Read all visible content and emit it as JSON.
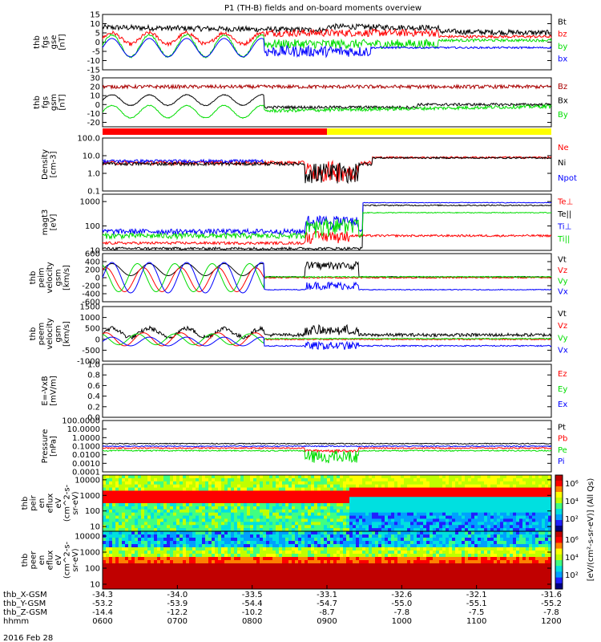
{
  "title": "P1 (TH-B) fields and on-board moments overview",
  "date_label": "2016 Feb 28",
  "colors": {
    "black": "#000000",
    "red": "#ff0000",
    "green": "#00dd00",
    "blue": "#0000ff",
    "darkred": "#aa0000",
    "yellow": "#ffff00"
  },
  "chart_data": [
    {
      "type": "line",
      "id": "fgs_gse",
      "ylabel": [
        "thb",
        "fgs",
        "gse",
        "[nT]"
      ],
      "ylim": [
        -15,
        15
      ],
      "yticks": [
        "15",
        "10",
        "5",
        "0",
        "-5",
        "-10",
        "-15"
      ],
      "yvals": [
        15,
        10,
        5,
        0,
        -5,
        -10,
        -15
      ],
      "series": [
        {
          "name": "Bt",
          "color": "#000000"
        },
        {
          "name": "bz",
          "color": "#ff0000"
        },
        {
          "name": "by",
          "color": "#00dd00"
        },
        {
          "name": "bx",
          "color": "#0000ff"
        }
      ]
    },
    {
      "type": "line",
      "id": "fgs_gsm",
      "ylabel": [
        "thb",
        "fgs",
        "gsm",
        "[nT]"
      ],
      "ylim": [
        -25,
        30
      ],
      "yticks": [
        "30",
        "20",
        "10",
        "0",
        "-10",
        "-20"
      ],
      "yvals": [
        30,
        20,
        10,
        0,
        -10,
        -20
      ],
      "series": [
        {
          "name": "Bz",
          "color": "#aa0000"
        },
        {
          "name": "Bx",
          "color": "#000000"
        },
        {
          "name": "By",
          "color": "#00dd00"
        }
      ]
    },
    {
      "type": "bar",
      "id": "mode_bar",
      "segments": [
        {
          "start": "0600",
          "end": "0900",
          "color": "#ff0000"
        },
        {
          "start": "0900",
          "end": "1200",
          "color": "#ffff00"
        }
      ]
    },
    {
      "type": "line",
      "id": "density",
      "scale": "log",
      "ylabel": [
        "Density",
        "[cm-3]"
      ],
      "ylim": [
        0.1,
        100
      ],
      "yticks": [
        "100.0",
        "10.0",
        "1.0",
        "0.1"
      ],
      "yvals": [
        100,
        10,
        1,
        0.1
      ],
      "series": [
        {
          "name": "Ne",
          "color": "#ff0000"
        },
        {
          "name": "Ni",
          "color": "#000000"
        },
        {
          "name": "Npot",
          "color": "#0000ff"
        }
      ]
    },
    {
      "type": "line",
      "id": "temperature",
      "scale": "log",
      "ylabel": [
        "magt3",
        "[eV]"
      ],
      "ylim": [
        10,
        2000
      ],
      "yticks": [
        "1000",
        "100",
        "10"
      ],
      "yvals": [
        1000,
        100,
        10
      ],
      "series": [
        {
          "name": "Te⊥",
          "color": "#ff0000"
        },
        {
          "name": "Te||",
          "color": "#000000"
        },
        {
          "name": "Ti⊥",
          "color": "#0000ff"
        },
        {
          "name": "Ti||",
          "color": "#00dd00"
        }
      ]
    },
    {
      "type": "line",
      "id": "ion_velocity",
      "ylabel": [
        "thb",
        "peim",
        "velocity",
        "gsm",
        "[km/s]"
      ],
      "ylim": [
        -600,
        600
      ],
      "yticks": [
        "600",
        "400",
        "200",
        "0",
        "-200",
        "-400",
        "-600"
      ],
      "yvals": [
        600,
        400,
        200,
        0,
        -200,
        -400,
        -600
      ],
      "series": [
        {
          "name": "Vt",
          "color": "#000000"
        },
        {
          "name": "Vz",
          "color": "#ff0000"
        },
        {
          "name": "Vy",
          "color": "#00dd00"
        },
        {
          "name": "Vx",
          "color": "#0000ff"
        }
      ]
    },
    {
      "type": "line",
      "id": "electron_velocity",
      "ylabel": [
        "thb",
        "peem",
        "velocity",
        "gsm",
        "[km/s]"
      ],
      "ylim": [
        -1000,
        1500
      ],
      "yticks": [
        "1500",
        "1000",
        "500",
        "0",
        "-500",
        "-1000"
      ],
      "yvals": [
        1500,
        1000,
        500,
        0,
        -500,
        -1000
      ],
      "series": [
        {
          "name": "Vt",
          "color": "#000000"
        },
        {
          "name": "Vz",
          "color": "#ff0000"
        },
        {
          "name": "Vy",
          "color": "#00dd00"
        },
        {
          "name": "Vx",
          "color": "#0000ff"
        }
      ]
    },
    {
      "type": "line",
      "id": "efield",
      "ylabel": [
        "E=-VxB",
        "[mV/m]"
      ],
      "ylim": [
        0,
        1
      ],
      "yticks": [
        "1.0",
        "0.8",
        "0.6",
        "0.4",
        "0.2",
        "0.0"
      ],
      "yvals": [
        1,
        0.8,
        0.6,
        0.4,
        0.2,
        0
      ],
      "series": [
        {
          "name": "Ez",
          "color": "#ff0000"
        },
        {
          "name": "Ey",
          "color": "#00dd00"
        },
        {
          "name": "Ex",
          "color": "#0000ff"
        }
      ]
    },
    {
      "type": "line",
      "id": "pressure",
      "scale": "log",
      "ylabel": [
        "Pressure",
        "[nPa]"
      ],
      "ylim": [
        0.0001,
        100
      ],
      "yticks": [
        "100.0000",
        "10.0000",
        "1.0000",
        "0.1000",
        "0.0100",
        "0.0010",
        "0.0001"
      ],
      "yvals": [
        100,
        10,
        1,
        0.1,
        0.01,
        0.001,
        0.0001
      ],
      "series": [
        {
          "name": "Pt",
          "color": "#000000"
        },
        {
          "name": "Pb",
          "color": "#ff0000"
        },
        {
          "name": "Pe",
          "color": "#00dd00"
        },
        {
          "name": "Pi",
          "color": "#0000ff"
        }
      ]
    },
    {
      "type": "heatmap",
      "id": "ion_spectrogram",
      "scale": "log",
      "ylabel": [
        "thb",
        "peir",
        "en",
        "eflux",
        "eV",
        "(cm^2-s-",
        "sr-eV)"
      ],
      "ylim": [
        5,
        20000
      ],
      "yticks": [
        "10000",
        "1000",
        "100",
        "10"
      ],
      "yvals": [
        10000,
        1000,
        100,
        10
      ]
    },
    {
      "type": "heatmap",
      "id": "electron_spectrogram",
      "scale": "log",
      "ylabel": [
        "thb",
        "peer",
        "en",
        "eflux",
        "eV",
        "(cm^2-s-",
        "sr-eV)"
      ],
      "ylim": [
        5,
        20000
      ],
      "yticks": [
        "10000",
        "1000",
        "100",
        "10"
      ],
      "yvals": [
        10000,
        1000,
        100,
        10
      ]
    }
  ],
  "colorbar": {
    "label": "[eV/(cm²-s-sr-eV)] (All Qs)",
    "ticks": [
      "10⁶",
      "10⁴",
      "10²"
    ],
    "label2": "[eV/(cm²-s-sr-eV)] (All Qs)"
  },
  "x_axis": {
    "rows": [
      {
        "label": "thb_X-GSM",
        "values": [
          "-34.3",
          "-34.0",
          "-33.5",
          "-33.1",
          "-32.6",
          "-32.1",
          "-31.6"
        ]
      },
      {
        "label": "thb_Y-GSM",
        "values": [
          "-53.2",
          "-53.9",
          "-54.4",
          "-54.7",
          "-55.0",
          "-55.1",
          "-55.2"
        ]
      },
      {
        "label": "thb_Z-GSM",
        "values": [
          "-14.4",
          "-12.2",
          "-10.2",
          "-8.7",
          "-7.8",
          "-7.5",
          "-7.8"
        ]
      },
      {
        "label": "hhmm",
        "values": [
          "0600",
          "0700",
          "0800",
          "0900",
          "1000",
          "1100",
          "1200"
        ]
      }
    ]
  }
}
